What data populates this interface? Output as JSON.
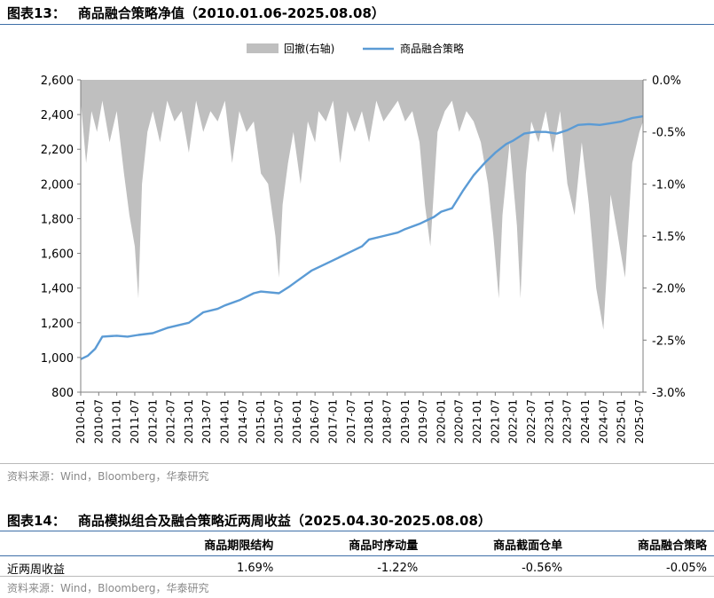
{
  "figure13": {
    "label": "图表13：",
    "title": "商品融合策略净值（2010.01.06-2025.08.08）",
    "source": "资料来源：Wind，Bloomberg，华泰研究"
  },
  "figure14": {
    "label": "图表14：",
    "title": "商品模拟组合及融合策略近两周收益（2025.04.30-2025.08.08）",
    "source": "资料来源：Wind，Bloomberg，华泰研究",
    "columns": [
      "",
      "商品期限结构",
      "商品时序动量",
      "商品截面仓单",
      "商品融合策略"
    ],
    "rows": [
      {
        "label": "近两周收益",
        "values": [
          "1.69%",
          "-1.22%",
          "-0.56%",
          "-0.05%"
        ]
      }
    ]
  },
  "chart_data": {
    "type": "line",
    "title": "",
    "legend_position": "top-center",
    "grid": false,
    "colors": {
      "line": "#5b9bd5",
      "drawdown": "#bfbfbf"
    },
    "x_tick_labels": [
      "2010-01",
      "2010-07",
      "2011-01",
      "2011-07",
      "2012-01",
      "2012-07",
      "2013-01",
      "2013-07",
      "2014-01",
      "2014-07",
      "2015-01",
      "2015-07",
      "2016-01",
      "2016-07",
      "2017-01",
      "2017-07",
      "2018-01",
      "2018-07",
      "2019-01",
      "2019-07",
      "2020-01",
      "2020-07",
      "2021-01",
      "2021-07",
      "2022-01",
      "2022-07",
      "2023-01",
      "2023-07",
      "2024-01",
      "2024-07",
      "2025-01",
      "2025-07"
    ],
    "x_range": [
      2010.0,
      2025.6
    ],
    "y_left": {
      "range": [
        800,
        2600
      ],
      "ticks": [
        800,
        1000,
        1200,
        1400,
        1600,
        1800,
        2000,
        2200,
        2400,
        2600
      ],
      "tick_labels": [
        "800",
        "1,000",
        "1,200",
        "1,400",
        "1,600",
        "1,800",
        "2,000",
        "2,200",
        "2,400",
        "2,600"
      ]
    },
    "y_right": {
      "range": [
        -3.0,
        0.0
      ],
      "ticks": [
        0,
        -0.5,
        -1.0,
        -1.5,
        -2.0,
        -2.5,
        -3.0
      ],
      "tick_labels": [
        "0.0%",
        "-0.5%",
        "-1.0%",
        "-1.5%",
        "-2.0%",
        "-2.5%",
        "-3.0%"
      ],
      "unit": "%"
    },
    "series": [
      {
        "name": "回撤(右轴)",
        "axis": "right",
        "kind": "area",
        "x": [
          2010.0,
          2010.15,
          2010.3,
          2010.45,
          2010.6,
          2010.8,
          2011.0,
          2011.2,
          2011.35,
          2011.5,
          2011.6,
          2011.7,
          2011.85,
          2012.0,
          2012.2,
          2012.4,
          2012.6,
          2012.8,
          2013.0,
          2013.2,
          2013.4,
          2013.6,
          2013.8,
          2014.0,
          2014.2,
          2014.4,
          2014.6,
          2014.8,
          2015.0,
          2015.2,
          2015.4,
          2015.5,
          2015.6,
          2015.75,
          2015.9,
          2016.1,
          2016.3,
          2016.5,
          2016.6,
          2016.8,
          2017.0,
          2017.2,
          2017.4,
          2017.6,
          2017.8,
          2018.0,
          2018.2,
          2018.4,
          2018.6,
          2018.8,
          2019.0,
          2019.2,
          2019.4,
          2019.55,
          2019.7,
          2019.9,
          2020.1,
          2020.3,
          2020.5,
          2020.7,
          2020.9,
          2021.1,
          2021.3,
          2021.45,
          2021.6,
          2021.7,
          2021.9,
          2022.1,
          2022.2,
          2022.35,
          2022.5,
          2022.7,
          2022.9,
          2023.1,
          2023.3,
          2023.5,
          2023.7,
          2023.9,
          2024.1,
          2024.3,
          2024.5,
          2024.6,
          2024.7,
          2024.9,
          2025.1,
          2025.3,
          2025.5,
          2025.6
        ],
        "values": [
          -0.2,
          -0.8,
          -0.3,
          -0.5,
          -0.2,
          -0.6,
          -0.3,
          -0.9,
          -1.3,
          -1.6,
          -2.1,
          -1.0,
          -0.5,
          -0.3,
          -0.6,
          -0.2,
          -0.4,
          -0.3,
          -0.7,
          -0.2,
          -0.5,
          -0.3,
          -0.4,
          -0.2,
          -0.8,
          -0.3,
          -0.5,
          -0.4,
          -0.9,
          -1.0,
          -1.5,
          -1.9,
          -1.2,
          -0.8,
          -0.5,
          -1.0,
          -0.4,
          -0.6,
          -0.3,
          -0.4,
          -0.2,
          -0.8,
          -0.3,
          -0.5,
          -0.3,
          -0.6,
          -0.2,
          -0.4,
          -0.3,
          -0.2,
          -0.4,
          -0.3,
          -0.6,
          -1.2,
          -1.6,
          -0.5,
          -0.3,
          -0.2,
          -0.5,
          -0.3,
          -0.4,
          -0.6,
          -1.0,
          -1.5,
          -2.1,
          -1.3,
          -0.6,
          -1.4,
          -2.1,
          -0.9,
          -0.4,
          -0.6,
          -0.3,
          -0.7,
          -0.3,
          -1.0,
          -1.3,
          -0.6,
          -1.2,
          -2.0,
          -2.4,
          -1.8,
          -1.1,
          -1.5,
          -1.9,
          -0.8,
          -0.5,
          -0.4
        ]
      },
      {
        "name": "商品融合策略",
        "axis": "left",
        "kind": "line",
        "x": [
          2010.0,
          2010.2,
          2010.4,
          2010.6,
          2011.0,
          2011.3,
          2011.6,
          2012.0,
          2012.4,
          2012.8,
          2013.0,
          2013.4,
          2013.8,
          2014.0,
          2014.4,
          2014.8,
          2015.0,
          2015.5,
          2015.8,
          2016.0,
          2016.4,
          2016.8,
          2017.0,
          2017.4,
          2017.8,
          2018.0,
          2018.4,
          2018.8,
          2019.0,
          2019.4,
          2019.8,
          2020.0,
          2020.3,
          2020.6,
          2020.9,
          2021.2,
          2021.5,
          2021.8,
          2022.0,
          2022.3,
          2022.6,
          2022.9,
          2023.2,
          2023.5,
          2023.8,
          2024.1,
          2024.4,
          2024.7,
          2025.0,
          2025.3,
          2025.6
        ],
        "values": [
          990,
          1010,
          1050,
          1120,
          1125,
          1120,
          1130,
          1140,
          1170,
          1190,
          1200,
          1260,
          1280,
          1300,
          1330,
          1370,
          1380,
          1370,
          1410,
          1440,
          1500,
          1540,
          1560,
          1600,
          1640,
          1680,
          1700,
          1720,
          1740,
          1770,
          1810,
          1840,
          1860,
          1960,
          2050,
          2120,
          2180,
          2230,
          2250,
          2290,
          2300,
          2300,
          2290,
          2310,
          2340,
          2345,
          2340,
          2350,
          2360,
          2380,
          2390
        ]
      }
    ]
  }
}
